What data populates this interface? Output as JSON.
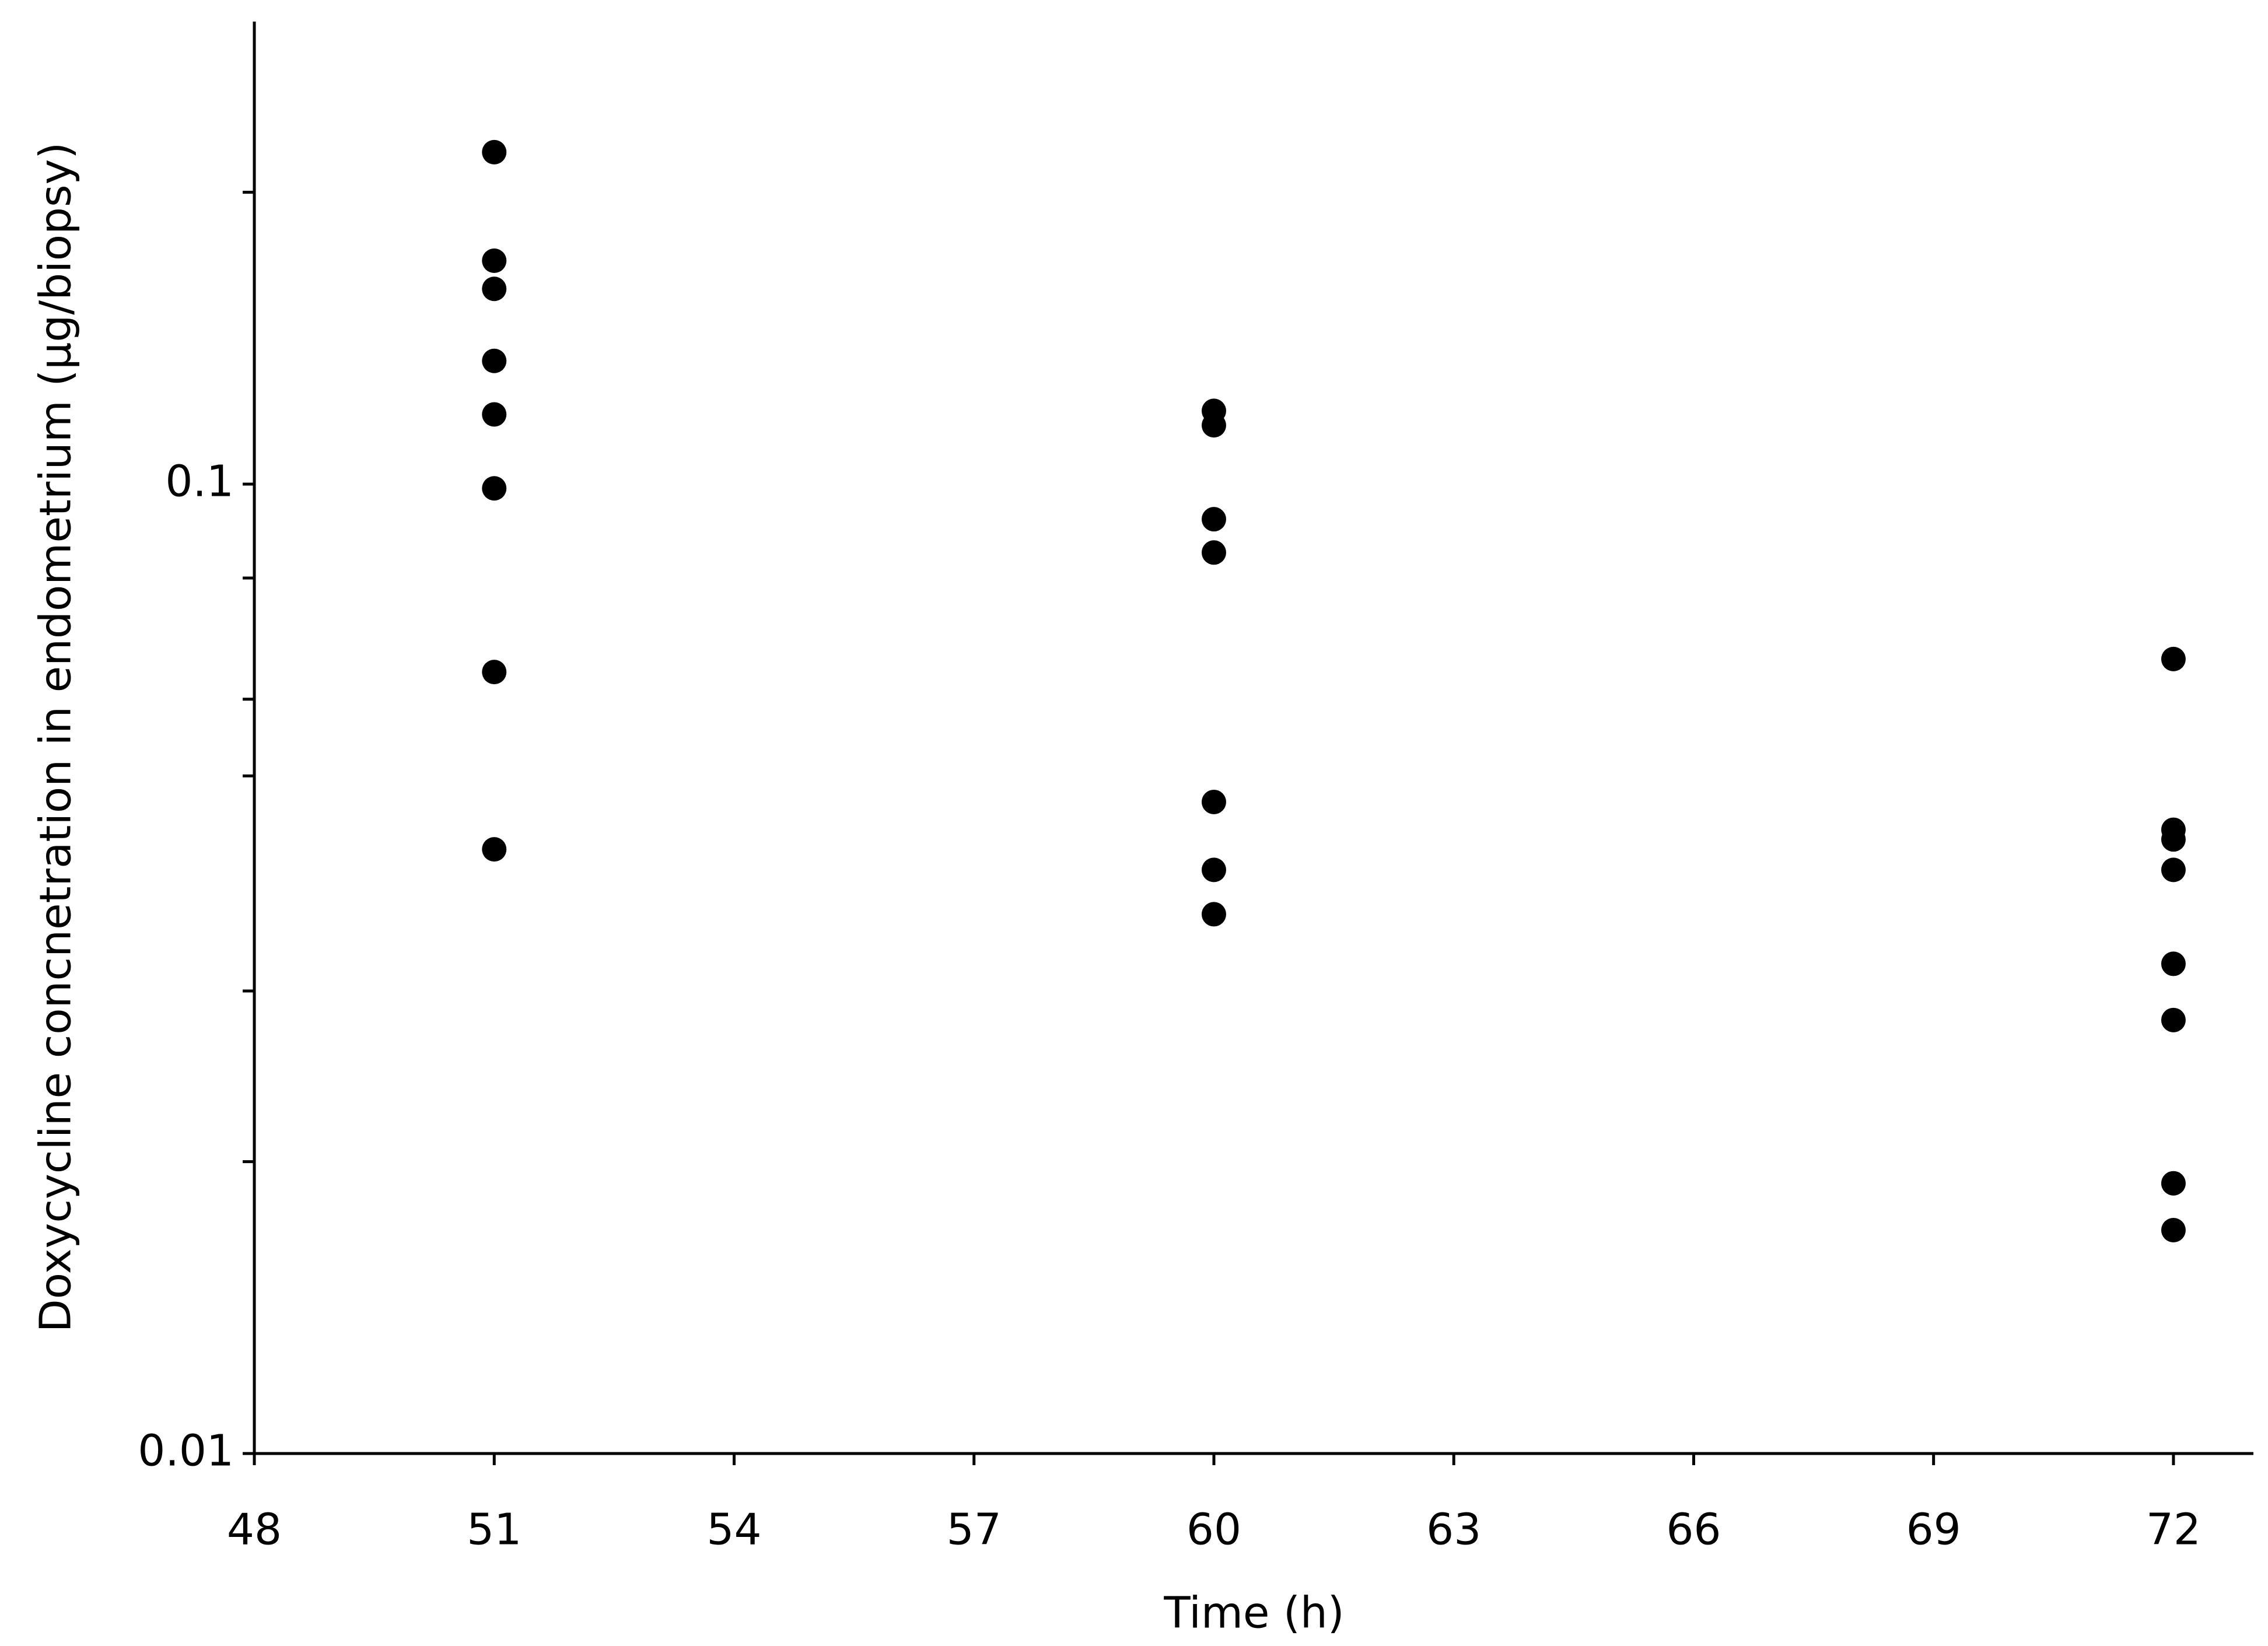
{
  "chart_data": {
    "type": "scatter",
    "xlabel": "Time (h)",
    "ylabel": "Doxycycline concnetration in endometrium (µg/biopsy)",
    "x": [
      51,
      51,
      51,
      51,
      51,
      51,
      51,
      51,
      60,
      60,
      60,
      60,
      60,
      60,
      60,
      72,
      72,
      72,
      72,
      72,
      72,
      72,
      72
    ],
    "values": [
      0.22,
      0.17,
      0.159,
      0.134,
      0.118,
      0.099,
      0.064,
      0.042,
      0.119,
      0.115,
      0.092,
      0.085,
      0.047,
      0.04,
      0.036,
      0.066,
      0.044,
      0.043,
      0.04,
      0.032,
      0.028,
      0.019,
      0.017
    ],
    "color": "#000000",
    "xlim": [
      48,
      73
    ],
    "xticks": [
      48,
      51,
      54,
      57,
      60,
      63,
      66,
      69,
      72
    ],
    "ylim": [
      0.01,
      0.3
    ],
    "yticks": [
      0.01,
      0.1
    ],
    "yminorticks": [
      0.02,
      0.03,
      0.05,
      0.06,
      0.08,
      0.2
    ],
    "ylog": true
  }
}
